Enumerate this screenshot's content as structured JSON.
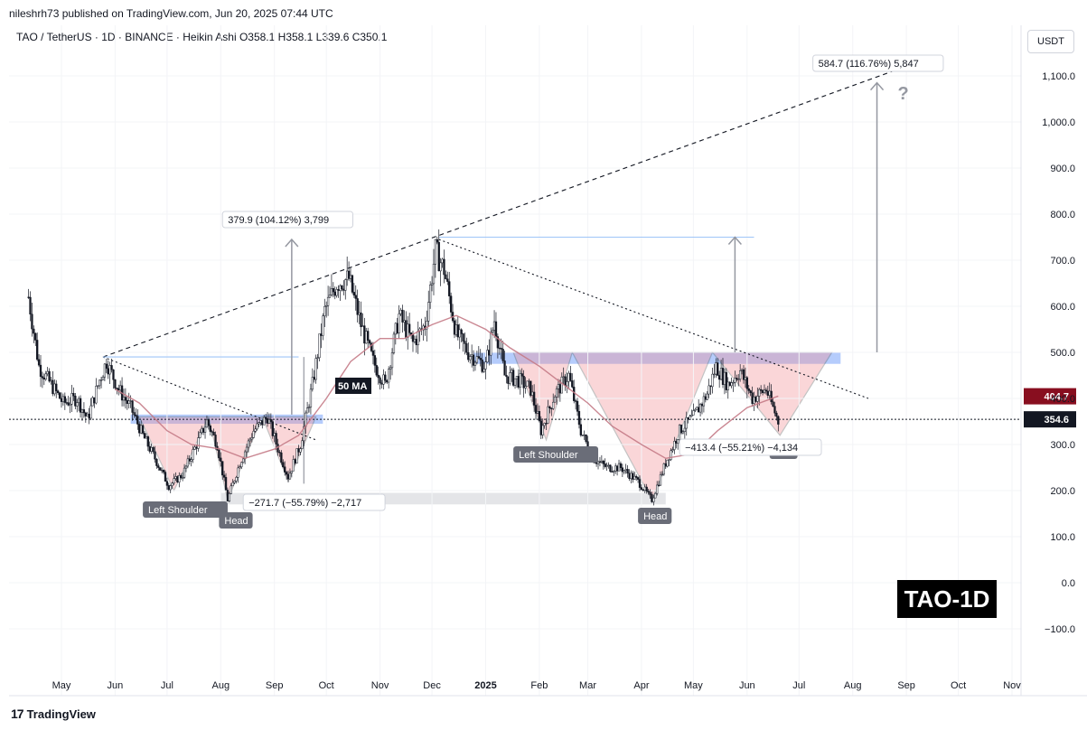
{
  "attribution": "nileshrh73 published on TradingView.com, Jun 20, 2025 07:44 UTC",
  "legend": "TAO / TetherUS · 1D · BINANCE · Heikin Ashi  O358.1  H358.1  L339.6  C350.1",
  "currency_unit": "USDT",
  "brand": "TradingView",
  "chart_data": {
    "type": "candlestick",
    "title": "TAO-1D",
    "ylim": [
      -150,
      1200
    ],
    "y_ticks": [
      -100,
      0,
      100,
      200,
      300,
      400,
      500,
      600,
      700,
      800,
      900,
      1000,
      1100
    ],
    "y_tick_labels": [
      "−100.0",
      "0.0",
      "100.0",
      "200.0",
      "300.0",
      "400.0",
      "500.0",
      "600.0",
      "700.0",
      "800.0",
      "900.0",
      "1,000.0",
      "1,100.0"
    ],
    "x_tick_labels": [
      "May",
      "Jun",
      "Jul",
      "Aug",
      "Sep",
      "Oct",
      "Nov",
      "Dec",
      "2025",
      "Feb",
      "Mar",
      "Apr",
      "May",
      "Jun",
      "Jul",
      "Aug",
      "Sep",
      "Oct",
      "Nov"
    ],
    "x_tick_dates": [
      "2024-05-01",
      "2024-06-01",
      "2024-07-01",
      "2024-08-01",
      "2024-09-01",
      "2024-10-01",
      "2024-11-01",
      "2024-12-01",
      "2025-01-01",
      "2025-02-01",
      "2025-03-01",
      "2025-04-01",
      "2025-05-01",
      "2025-06-01",
      "2025-07-01",
      "2025-08-01",
      "2025-09-01",
      "2025-10-01",
      "2025-11-01"
    ],
    "last_price": 354.6,
    "ma_value": 404.7,
    "price_path": [
      [
        "2024-04-12",
        620
      ],
      [
        "2024-04-18",
        470
      ],
      [
        "2024-04-25",
        430
      ],
      [
        "2024-05-02",
        390
      ],
      [
        "2024-05-10",
        400
      ],
      [
        "2024-05-16",
        355
      ],
      [
        "2024-05-23",
        440
      ],
      [
        "2024-05-27",
        480
      ],
      [
        "2024-06-03",
        420
      ],
      [
        "2024-06-10",
        380
      ],
      [
        "2024-06-17",
        320
      ],
      [
        "2024-06-24",
        270
      ],
      [
        "2024-07-02",
        210
      ],
      [
        "2024-07-10",
        235
      ],
      [
        "2024-07-18",
        300
      ],
      [
        "2024-07-24",
        350
      ],
      [
        "2024-07-30",
        300
      ],
      [
        "2024-08-05",
        180
      ],
      [
        "2024-08-12",
        260
      ],
      [
        "2024-08-20",
        330
      ],
      [
        "2024-08-28",
        360
      ],
      [
        "2024-09-04",
        280
      ],
      [
        "2024-09-09",
        230
      ],
      [
        "2024-09-16",
        300
      ],
      [
        "2024-09-23",
        430
      ],
      [
        "2024-09-30",
        590
      ],
      [
        "2024-10-07",
        650
      ],
      [
        "2024-10-14",
        660
      ],
      [
        "2024-10-21",
        560
      ],
      [
        "2024-10-28",
        480
      ],
      [
        "2024-11-04",
        430
      ],
      [
        "2024-11-12",
        580
      ],
      [
        "2024-11-20",
        520
      ],
      [
        "2024-11-27",
        560
      ],
      [
        "2024-12-03",
        720
      ],
      [
        "2024-12-08",
        680
      ],
      [
        "2024-12-15",
        540
      ],
      [
        "2024-12-22",
        500
      ],
      [
        "2025-01-01",
        470
      ],
      [
        "2025-01-06",
        570
      ],
      [
        "2025-01-12",
        450
      ],
      [
        "2025-01-20",
        440
      ],
      [
        "2025-01-27",
        420
      ],
      [
        "2025-02-02",
        330
      ],
      [
        "2025-02-10",
        410
      ],
      [
        "2025-02-18",
        450
      ],
      [
        "2025-02-25",
        330
      ],
      [
        "2025-03-04",
        270
      ],
      [
        "2025-03-12",
        250
      ],
      [
        "2025-03-20",
        250
      ],
      [
        "2025-03-30",
        220
      ],
      [
        "2025-04-07",
        180
      ],
      [
        "2025-04-15",
        260
      ],
      [
        "2025-04-23",
        330
      ],
      [
        "2025-05-01",
        360
      ],
      [
        "2025-05-09",
        410
      ],
      [
        "2025-05-14",
        470
      ],
      [
        "2025-05-21",
        430
      ],
      [
        "2025-05-28",
        460
      ],
      [
        "2025-06-04",
        400
      ],
      [
        "2025-06-12",
        420
      ],
      [
        "2025-06-19",
        350
      ]
    ],
    "ma_path": [
      [
        "2024-06-01",
        420
      ],
      [
        "2024-06-15",
        390
      ],
      [
        "2024-07-01",
        330
      ],
      [
        "2024-07-15",
        300
      ],
      [
        "2024-08-01",
        290
      ],
      [
        "2024-08-15",
        270
      ],
      [
        "2024-09-01",
        290
      ],
      [
        "2024-09-15",
        320
      ],
      [
        "2024-10-01",
        400
      ],
      [
        "2024-10-15",
        480
      ],
      [
        "2024-11-01",
        530
      ],
      [
        "2024-11-15",
        530
      ],
      [
        "2024-12-01",
        560
      ],
      [
        "2024-12-15",
        580
      ],
      [
        "2025-01-01",
        550
      ],
      [
        "2025-01-15",
        510
      ],
      [
        "2025-02-01",
        470
      ],
      [
        "2025-02-15",
        430
      ],
      [
        "2025-03-01",
        390
      ],
      [
        "2025-03-15",
        340
      ],
      [
        "2025-04-01",
        300
      ],
      [
        "2025-04-15",
        270
      ],
      [
        "2025-05-01",
        280
      ],
      [
        "2025-05-15",
        330
      ],
      [
        "2025-06-01",
        380
      ],
      [
        "2025-06-19",
        405
      ]
    ],
    "annotations": {
      "ma_label": "50 MA",
      "left_pattern": {
        "shoulder_label": "Left Shoulder",
        "head_label": "Head",
        "target_label": "379.9 (104.12%) 3,799",
        "drop_label": "−271.7 (−55.79%) −2,717"
      },
      "right_pattern": {
        "shoulder_label": "Left Shoulder",
        "head_label": "Head",
        "right_shoulder_label": "der",
        "drop_label": "−413.4 (−55.21%) −4,134"
      },
      "target_label": "584.7 (116.76%) 5,847",
      "question_mark": "?"
    }
  }
}
